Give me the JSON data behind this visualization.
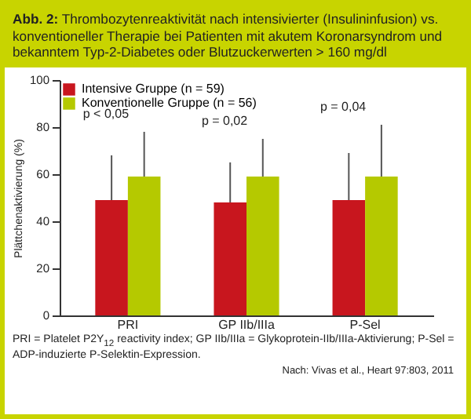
{
  "chart_data": {
    "type": "bar",
    "title": "Abb. 2: Thrombozytenreaktivität nach intensivierter (Insulininfusion) vs. konventioneller Therapie bei Patienten mit akutem Koronarsyndrom und bekanntem Typ-2-Diabetes oder Blutzuckerwerten > 160 mg/dl",
    "ylabel": "Plättchenaktivierung (%)",
    "categories": [
      "PRI",
      "GP IIb/IIIa",
      "P-Sel"
    ],
    "series": [
      {
        "name": "Intensive Gruppe (n = 59)",
        "color": "#c8161e",
        "values": [
          49,
          48,
          49
        ],
        "errors": [
          [
            49,
            68
          ],
          [
            48,
            65
          ],
          [
            49,
            69
          ]
        ]
      },
      {
        "name": "Konventionelle Gruppe (n = 56)",
        "color": "#b5c900",
        "values": [
          59,
          59,
          59
        ],
        "errors": [
          [
            59,
            78
          ],
          [
            59,
            75
          ],
          [
            59,
            81
          ]
        ]
      }
    ],
    "ylim": [
      0,
      100
    ],
    "yticks": [
      0,
      20,
      40,
      60,
      80,
      100
    ],
    "grid": false,
    "legend": "top left",
    "annotations": [
      "p < 0,05",
      "p = 0,02",
      "p = 0,04",
      "PRI = Platelet P2Y$_{12}$ reactivity index; GP IIb/IIIa = Glykoprotein-IIb/IIIa-Aktivierung; P-Sel = ADP-induzierte P-Selektin-Expression.",
      "Nach: Vivas et al., Heart 97:803, 2011"
    ]
  }
}
